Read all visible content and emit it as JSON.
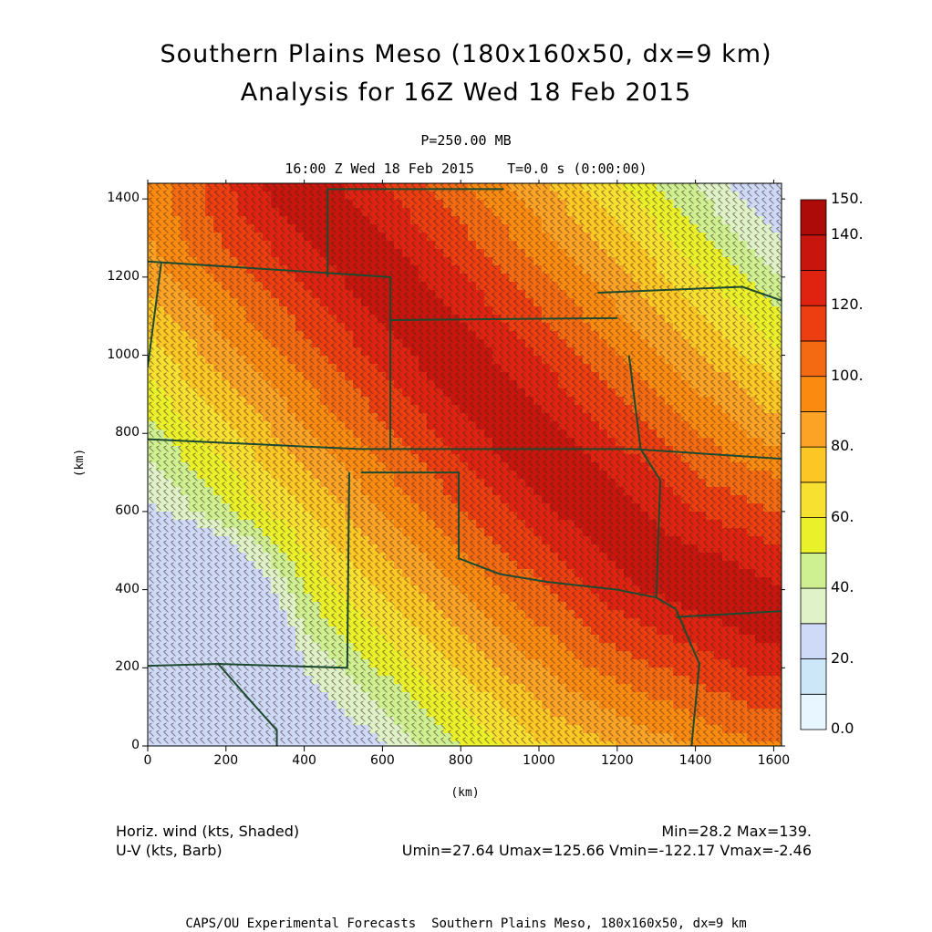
{
  "header": {
    "title_line1": "Southern Plains Meso (180x160x50, dx=9 km)",
    "title_line2": "Analysis for 16Z Wed 18 Feb 2015",
    "level": "P=250.00 MB",
    "time": "16:00 Z Wed 18 Feb 2015    T=0.0 s (0:00:00)"
  },
  "chart_data": {
    "type": "heatmap",
    "xlabel": "(km)",
    "ylabel": "(km)",
    "xlim": [
      0,
      1620
    ],
    "ylim": [
      0,
      1440
    ],
    "x_ticks": [
      "0",
      "200",
      "400",
      "600",
      "800",
      "1000",
      "1200",
      "1400",
      "1600"
    ],
    "y_ticks": [
      "0",
      "200",
      "400",
      "600",
      "800",
      "1000",
      "1200",
      "1400"
    ],
    "colorbar": {
      "labels": [
        "0.0",
        "20.",
        "40.",
        "60.",
        "80.",
        "100.",
        "120.",
        "140.",
        "150."
      ],
      "levels": [
        0,
        10,
        20,
        30,
        40,
        50,
        60,
        70,
        80,
        90,
        100,
        110,
        120,
        130,
        140,
        150
      ],
      "colors": [
        "#e8f6ff",
        "#cce8f8",
        "#cfdaf8",
        "#e0f2c8",
        "#cef090",
        "#eaf02a",
        "#f8e030",
        "#fcc624",
        "#fca224",
        "#fb8b10",
        "#f46a12",
        "#ec3e10",
        "#df2310",
        "#c8150e",
        "#ad0a0a"
      ]
    },
    "jet_axis": [
      [
        380,
        1440
      ],
      [
        740,
        1040
      ],
      [
        1000,
        750
      ],
      [
        1300,
        470
      ],
      [
        1620,
        330
      ]
    ],
    "jet_max": 139,
    "field_min": 28.2
  },
  "info": {
    "left_line1": "Horiz. wind (kts, Shaded)",
    "left_line2": "U-V (kts, Barb)",
    "right_line1": "Min=28.2 Max=139.",
    "right_line2": "Umin=27.64 Umax=125.66 Vmin=-122.17 Vmax=-2.46"
  },
  "footer": "CAPS/OU Experimental Forecasts  Southern Plains Meso, 180x160x50, dx=9 km"
}
